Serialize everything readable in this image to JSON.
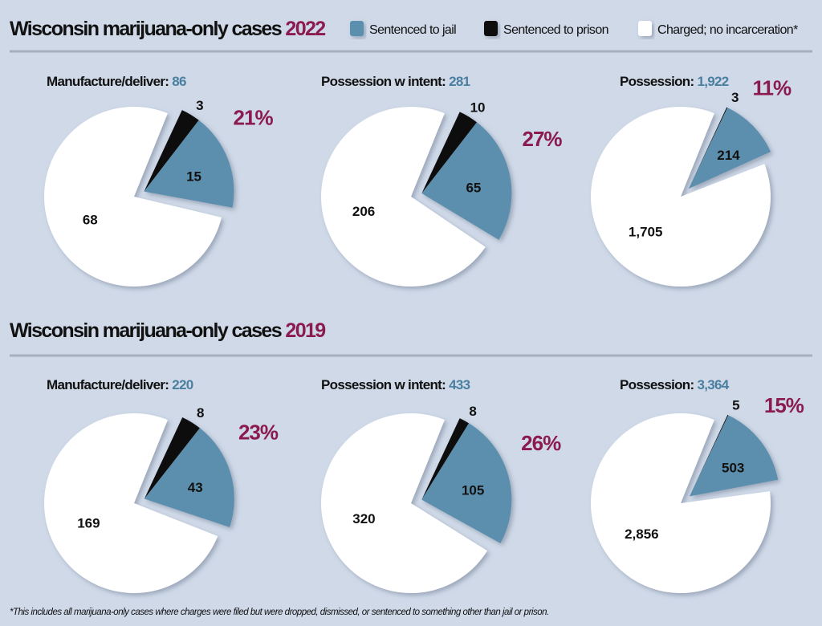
{
  "colors": {
    "jail": "#5b8fae",
    "prison": "#111111",
    "none": "#ffffff",
    "accent": "#8b1a4f",
    "total": "#4a7fa0",
    "background": "#cfd9e8"
  },
  "legend": [
    {
      "key": "jail",
      "label": "Sentenced to jail"
    },
    {
      "key": "prison",
      "label": "Sentenced to prison"
    },
    {
      "key": "none",
      "label": "Charged; no incarceration*"
    }
  ],
  "footnote": "*This includes all marijuana-only cases where charges were filed but were dropped, dismissed, or sentenced to something other than jail or prison.",
  "chart_data": [
    {
      "type": "pie",
      "title_prefix": "Wisconsin marijuana-only cases",
      "year": "2022",
      "pies": [
        {
          "label": "Manufacture/deliver:",
          "total": "86",
          "prison": 3,
          "jail": 15,
          "none": 68,
          "prison_label": "3",
          "jail_label": "15",
          "none_label": "68",
          "percent": "21%"
        },
        {
          "label": "Possession w intent:",
          "total": "281",
          "prison": 10,
          "jail": 65,
          "none": 206,
          "prison_label": "10",
          "jail_label": "65",
          "none_label": "206",
          "percent": "27%"
        },
        {
          "label": "Possession:",
          "total": "1,922",
          "prison": 3,
          "jail": 214,
          "none": 1705,
          "prison_label": "3",
          "jail_label": "214",
          "none_label": "1,705",
          "percent": "11%"
        }
      ]
    },
    {
      "type": "pie",
      "title_prefix": "Wisconsin marijuana-only cases",
      "year": "2019",
      "pies": [
        {
          "label": "Manufacture/deliver:",
          "total": "220",
          "prison": 8,
          "jail": 43,
          "none": 169,
          "prison_label": "8",
          "jail_label": "43",
          "none_label": "169",
          "percent": "23%"
        },
        {
          "label": "Possession w intent:",
          "total": "433",
          "prison": 8,
          "jail": 105,
          "none": 320,
          "prison_label": "8",
          "jail_label": "105",
          "none_label": "320",
          "percent": "26%"
        },
        {
          "label": "Possession:",
          "total": "3,364",
          "prison": 5,
          "jail": 503,
          "none": 2856,
          "prison_label": "5",
          "jail_label": "503",
          "none_label": "2,856",
          "percent": "15%"
        }
      ]
    }
  ]
}
